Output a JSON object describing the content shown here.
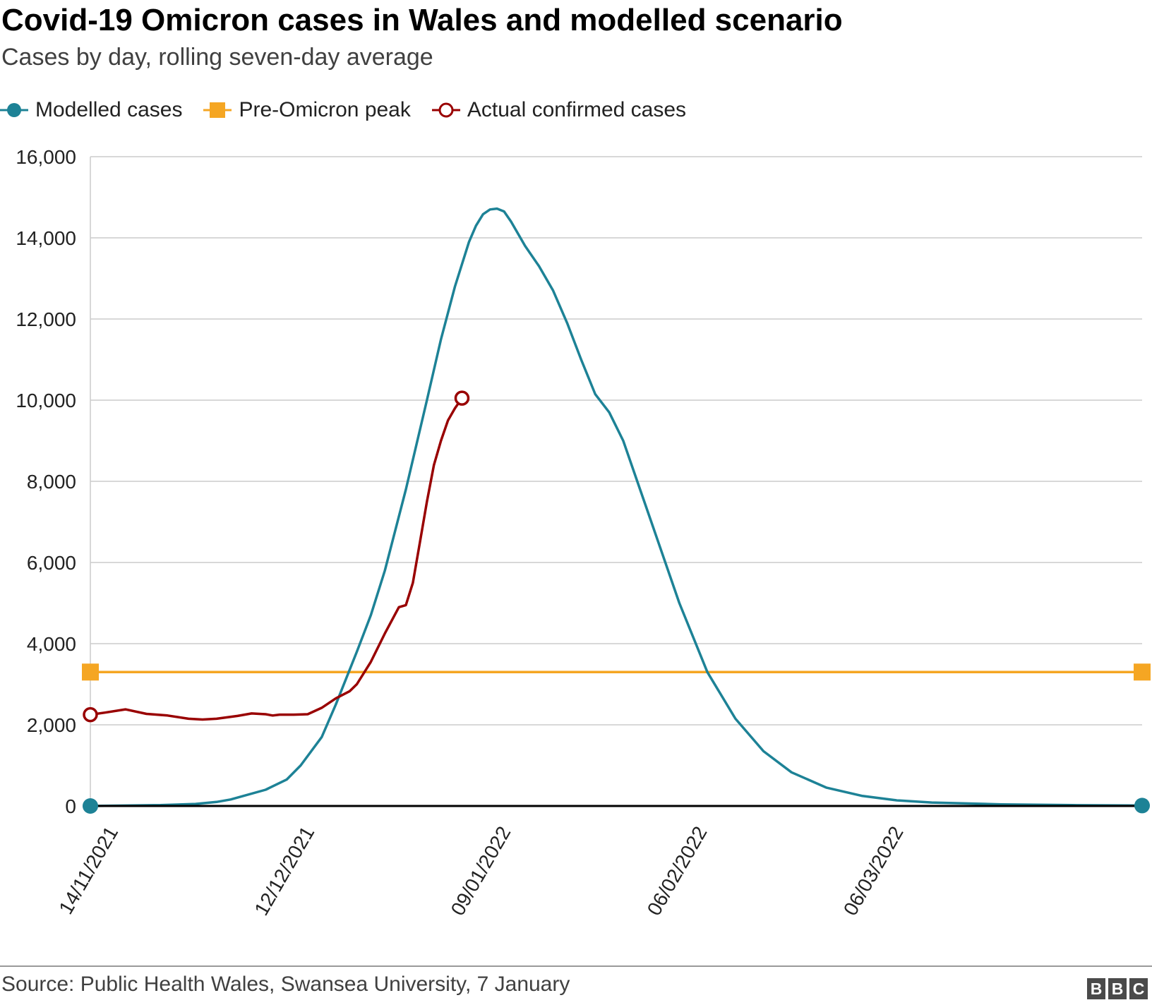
{
  "header": {
    "title": "Covid-19 Omicron cases in Wales and modelled scenario",
    "subtitle": "Cases by day, rolling seven-day average"
  },
  "legend": {
    "items": [
      {
        "label": "Modelled cases",
        "color": "#1d8296",
        "marker": "filled-circle"
      },
      {
        "label": "Pre-Omicron peak",
        "color": "#f5a623",
        "marker": "square"
      },
      {
        "label": "Actual confirmed cases",
        "color": "#990000",
        "marker": "hollow-circle"
      }
    ]
  },
  "footer": {
    "source": "Source: Public Health Wales, Swansea University, 7 January",
    "logo_letters": [
      "B",
      "B",
      "C"
    ]
  },
  "chart_data": {
    "type": "line",
    "title": "Covid-19 Omicron cases in Wales and modelled scenario",
    "subtitle": "Cases by day, rolling seven-day average",
    "xlabel": "",
    "ylabel": "",
    "x_start_date": "14/11/2021",
    "x_end_day": 150,
    "x_ticks": [
      {
        "day": 0,
        "label": "14/11/2021"
      },
      {
        "day": 28,
        "label": "12/12/2021"
      },
      {
        "day": 56,
        "label": "09/01/2022"
      },
      {
        "day": 84,
        "label": "06/02/2022"
      },
      {
        "day": 112,
        "label": "06/03/2022"
      }
    ],
    "ylim": [
      0,
      16000
    ],
    "y_ticks": [
      0,
      2000,
      4000,
      6000,
      8000,
      10000,
      12000,
      14000,
      16000
    ],
    "y_tick_labels": [
      "0",
      "2,000",
      "4,000",
      "6,000",
      "8,000",
      "10,000",
      "12,000",
      "14,000",
      "16,000"
    ],
    "grid": true,
    "legend_position": "top-left",
    "series": [
      {
        "name": "Modelled cases",
        "color": "#1d8296",
        "points": [
          [
            0,
            0
          ],
          [
            10,
            20
          ],
          [
            15,
            50
          ],
          [
            18,
            100
          ],
          [
            20,
            160
          ],
          [
            25,
            400
          ],
          [
            28,
            650
          ],
          [
            30,
            1000
          ],
          [
            33,
            1700
          ],
          [
            35,
            2500
          ],
          [
            38,
            3800
          ],
          [
            40,
            4700
          ],
          [
            42,
            5800
          ],
          [
            45,
            7800
          ],
          [
            48,
            10000
          ],
          [
            50,
            11500
          ],
          [
            52,
            12800
          ],
          [
            54,
            13900
          ],
          [
            55,
            14300
          ],
          [
            56,
            14580
          ],
          [
            57,
            14700
          ],
          [
            58,
            14720
          ],
          [
            59,
            14650
          ],
          [
            60,
            14400
          ],
          [
            62,
            13800
          ],
          [
            64,
            13300
          ],
          [
            66,
            12700
          ],
          [
            68,
            11900
          ],
          [
            70,
            11000
          ],
          [
            72,
            10150
          ],
          [
            74,
            9700
          ],
          [
            76,
            9000
          ],
          [
            78,
            8000
          ],
          [
            80,
            7000
          ],
          [
            84,
            5000
          ],
          [
            88,
            3300
          ],
          [
            92,
            2150
          ],
          [
            96,
            1350
          ],
          [
            100,
            830
          ],
          [
            105,
            450
          ],
          [
            110,
            250
          ],
          [
            115,
            140
          ],
          [
            120,
            85
          ],
          [
            130,
            40
          ],
          [
            140,
            20
          ],
          [
            150,
            10
          ]
        ]
      },
      {
        "name": "Pre-Omicron peak",
        "color": "#f5a623",
        "points": [
          [
            0,
            3300
          ],
          [
            150,
            3300
          ]
        ]
      },
      {
        "name": "Actual confirmed cases",
        "color": "#990000",
        "points": [
          [
            0,
            2250
          ],
          [
            2,
            2300
          ],
          [
            5,
            2380
          ],
          [
            8,
            2270
          ],
          [
            11,
            2230
          ],
          [
            14,
            2150
          ],
          [
            16,
            2130
          ],
          [
            18,
            2150
          ],
          [
            21,
            2220
          ],
          [
            23,
            2280
          ],
          [
            25,
            2260
          ],
          [
            26,
            2230
          ],
          [
            27,
            2250
          ],
          [
            29,
            2250
          ],
          [
            31,
            2260
          ],
          [
            33,
            2420
          ],
          [
            35,
            2650
          ],
          [
            37,
            2830
          ],
          [
            38,
            3000
          ],
          [
            40,
            3550
          ],
          [
            42,
            4250
          ],
          [
            44,
            4900
          ],
          [
            45,
            4950
          ],
          [
            46,
            5500
          ],
          [
            47,
            6500
          ],
          [
            48,
            7500
          ],
          [
            49,
            8400
          ],
          [
            50,
            9000
          ],
          [
            51,
            9500
          ],
          [
            52,
            9800
          ],
          [
            53,
            10050
          ]
        ]
      }
    ]
  }
}
